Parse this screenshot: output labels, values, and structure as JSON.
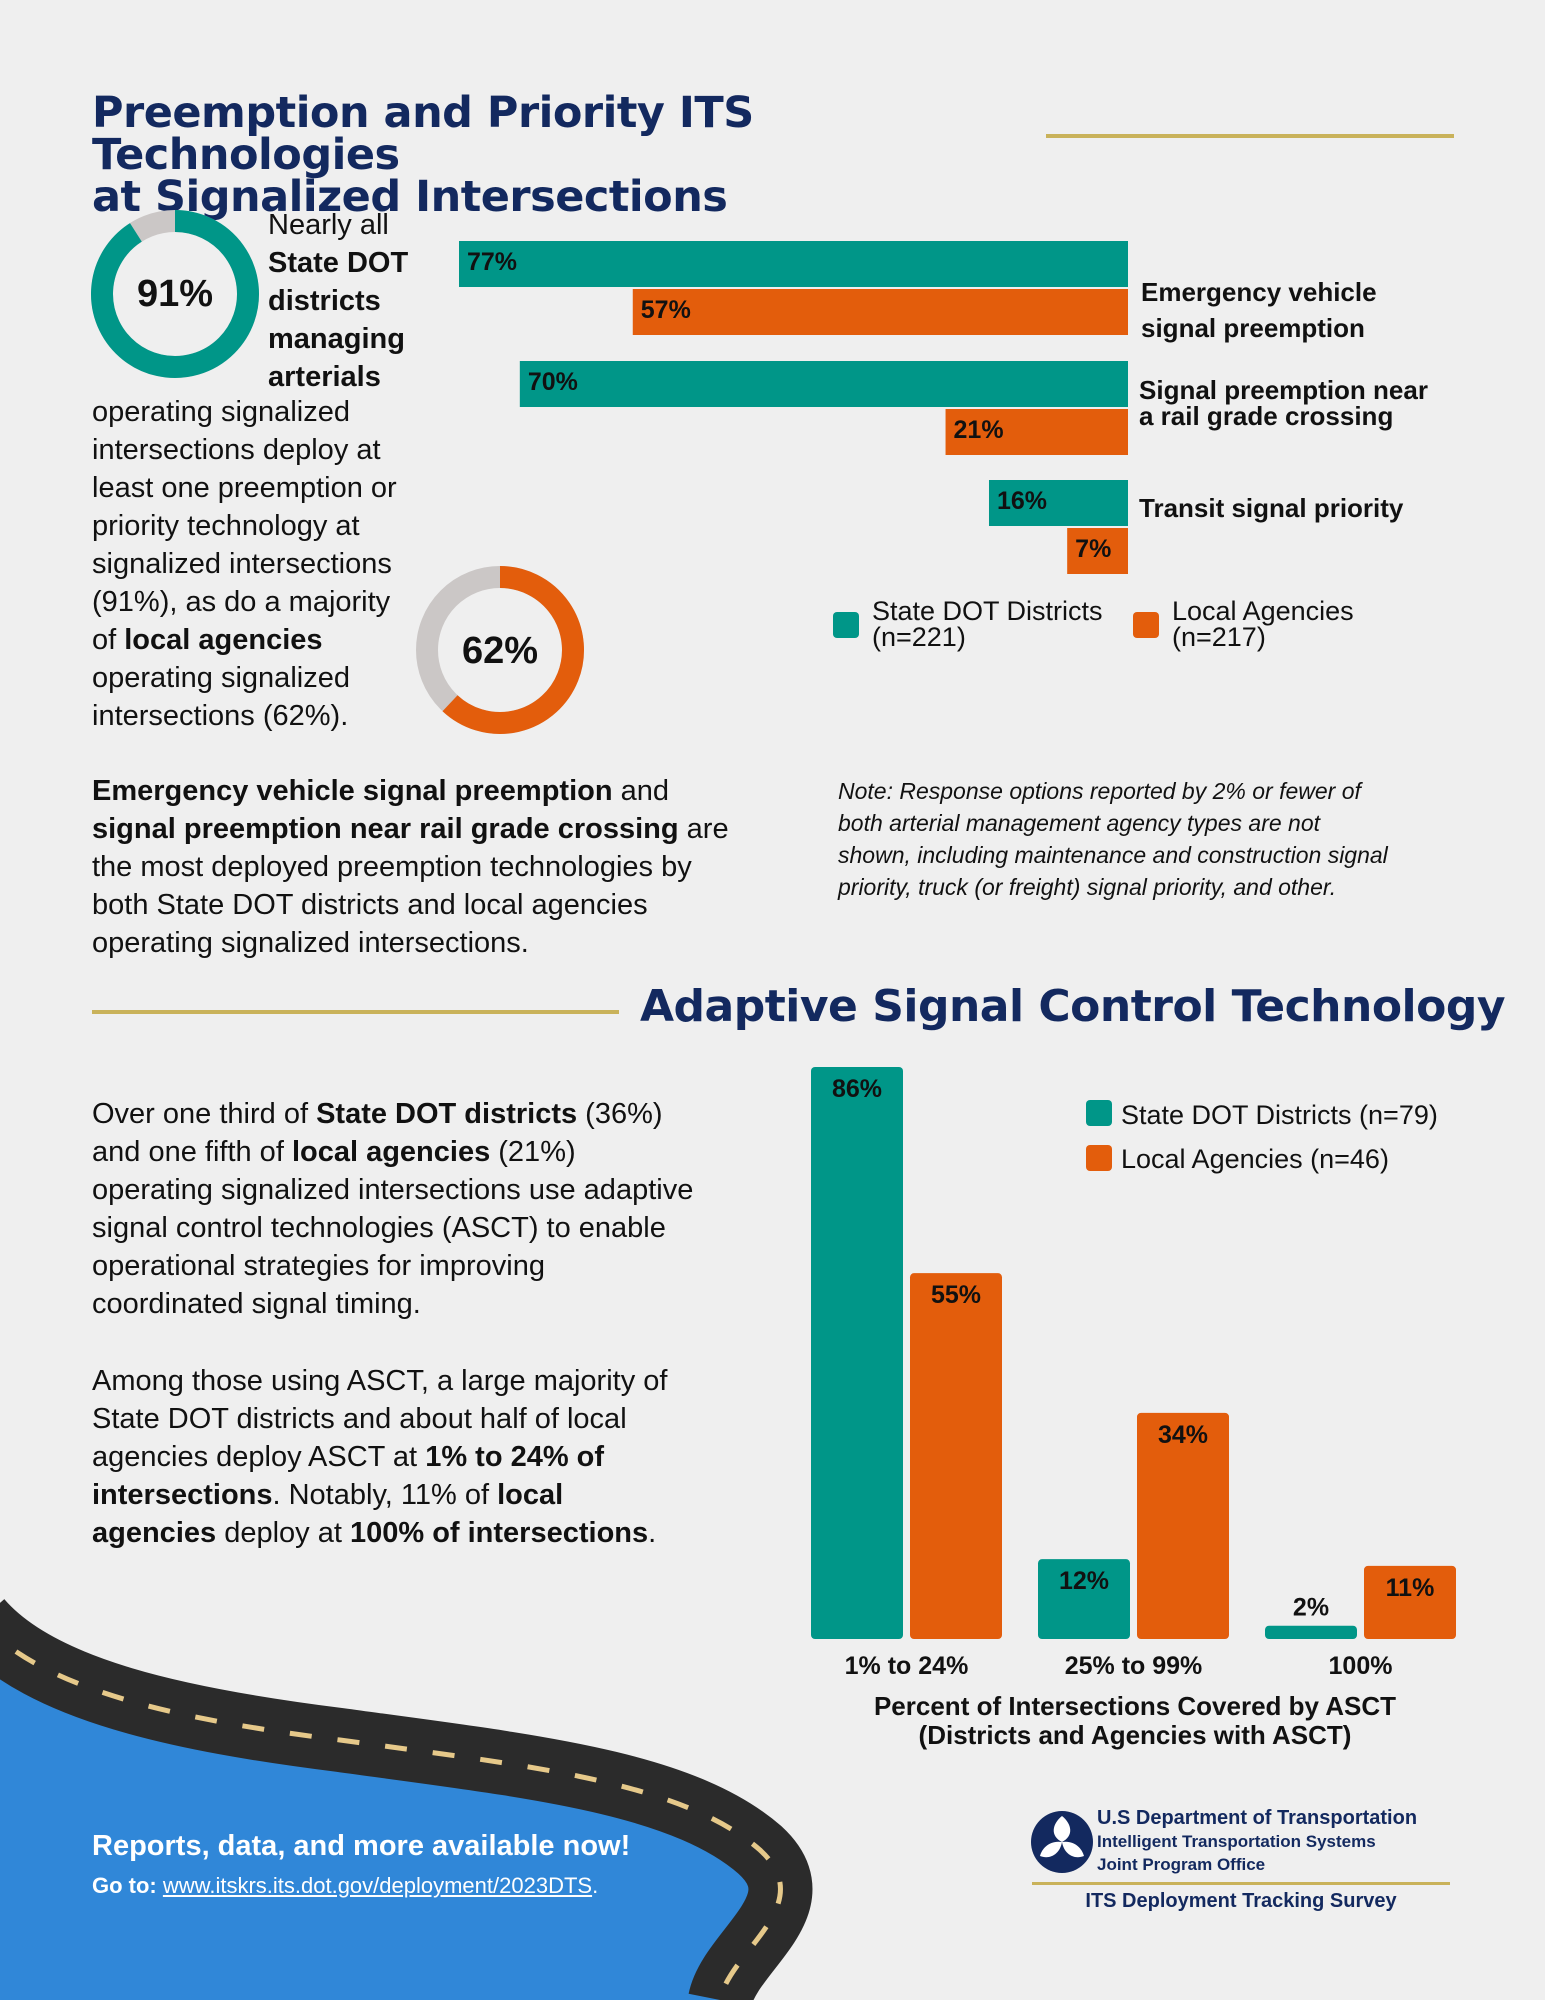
{
  "section1": {
    "title_line1": "Preemption and Priority ITS Technologies",
    "title_line2": "at Signalized Intersections",
    "donut_state": {
      "value": 91,
      "label": "91%"
    },
    "donut_local": {
      "value": 62,
      "label": "62%"
    },
    "intro": {
      "w1": "Nearly all",
      "w2": "State DOT",
      "w3": "districts",
      "w4": "managing",
      "w5": "arterials",
      "l1": "operating signalized",
      "l2": "intersections deploy at",
      "l3": "least one preemption or",
      "l4": "priority technology at",
      "l5": "signalized intersections",
      "l6": "(91%), as do a majority",
      "l7a": "of ",
      "l7b": "local agencies",
      "l8": "operating signalized",
      "l9": "intersections (62%)."
    },
    "summary": {
      "b1": "Emergency vehicle signal preemption",
      "t1": " and",
      "b2": "signal preemption near rail grade crossing",
      "t2": " are",
      "l3": "the most deployed preemption technologies by",
      "l4": "both State DOT districts and local agencies",
      "l5": "operating signalized intersections."
    },
    "note": {
      "l1": "Note: Response options reported by 2% or fewer of",
      "l2": "both arterial management agency types are not",
      "l3": "shown, including maintenance and construction signal",
      "l4": "priority, truck (or freight) signal priority, and other."
    },
    "legend": {
      "state_l1": "State DOT Districts",
      "state_l2": "(n=221)",
      "local_l1": "Local Agencies",
      "local_l2": "(n=217)"
    },
    "category_labels": {
      "c1_l1": "Emergency vehicle",
      "c1_l2": "signal preemption",
      "c2_l1": "Signal preemption near",
      "c2_l2": "a rail grade crossing",
      "c3_l1": "Transit signal priority"
    }
  },
  "section2": {
    "title": "Adaptive Signal Control Technology",
    "p1": {
      "a": "Over one third of ",
      "b": "State DOT districts",
      "c": " (36%)",
      "d": "and one fifth of ",
      "e": "local agencies",
      "f": " (21%)",
      "g": "operating signalized intersections use adaptive",
      "h": "signal control technologies (ASCT) to enable",
      "i": "operational strategies for improving",
      "j": "coordinated signal timing."
    },
    "p2": {
      "a": "Among those using ASCT, a large majority of",
      "b": "State DOT districts and about half of local",
      "c": "agencies deploy ASCT at ",
      "d": "1% to 24% of",
      "e": "intersections",
      "f": ". Notably, 11% of ",
      "g": "local",
      "h": "agencies",
      "i": " deploy at ",
      "j": "100% of intersections",
      "k": "."
    },
    "legend": {
      "state": "State DOT Districts (n=79)",
      "local": "Local Agencies (n=46)"
    },
    "xlabel_l1": "Percent of Intersections Covered by ASCT",
    "xlabel_l2": "(Districts and Agencies with ASCT)"
  },
  "chart_data": [
    {
      "type": "bar",
      "orientation": "horizontal",
      "categories": [
        "Emergency vehicle signal preemption",
        "Signal preemption near a rail grade crossing",
        "Transit signal priority"
      ],
      "series": [
        {
          "name": "State DOT Districts (n=221)",
          "values": [
            77,
            70,
            16
          ],
          "color": "#009688"
        },
        {
          "name": "Local Agencies (n=217)",
          "values": [
            57,
            21,
            7
          ],
          "color": "#e35d0c"
        }
      ],
      "legend": "bottom-right"
    },
    {
      "type": "bar",
      "categories": [
        "1% to 24%",
        "25% to 99%",
        "100%"
      ],
      "series": [
        {
          "name": "State DOT Districts (n=79)",
          "values": [
            86,
            12,
            2
          ],
          "color": "#009688"
        },
        {
          "name": "Local Agencies (n=46)",
          "values": [
            55,
            34,
            11
          ],
          "color": "#e35d0c"
        }
      ],
      "xlabel": "Percent of Intersections Covered by ASCT (Districts and Agencies with ASCT)",
      "legend": "top-right"
    }
  ],
  "footer": {
    "title": "Reports, data, and more available now!",
    "goto": "Go to:",
    "url": "www.itskrs.its.dot.gov/deployment/2023DTS",
    "period": ".",
    "dot_l1": "U.S Department of Transportation",
    "dot_l2": "Intelligent Transportation Systems",
    "dot_l3": "Joint Program Office",
    "survey": "ITS Deployment Tracking Survey"
  },
  "colors": {
    "teal": "#009688",
    "orange": "#e35d0c",
    "navy": "#13295f",
    "gold": "#c9b25a",
    "blue": "#3087d8"
  }
}
